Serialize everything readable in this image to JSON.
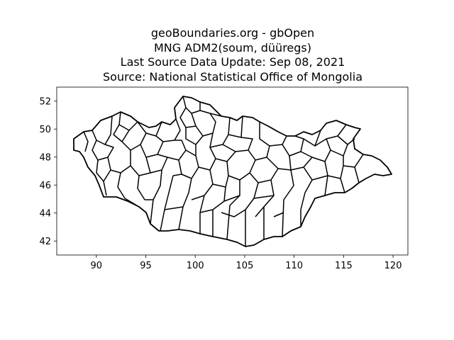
{
  "figure": {
    "title_lines": [
      "geoBoundaries.org - gbOpen",
      "MNG ADM2(soum, düüregs)",
      "Last Source Data Update: Sep 08, 2021",
      "Source: National Statistical Office of Mongolia"
    ]
  },
  "chart_data": {
    "type": "map",
    "xlim": [
      86.0,
      121.5
    ],
    "ylim": [
      41.0,
      53.0
    ],
    "x_ticks": [
      90,
      95,
      100,
      105,
      110,
      115,
      120
    ],
    "y_ticks": [
      42,
      44,
      46,
      48,
      50,
      52
    ],
    "grid": false,
    "colors": {
      "boundary": "#000000",
      "background": "#ffffff"
    }
  }
}
